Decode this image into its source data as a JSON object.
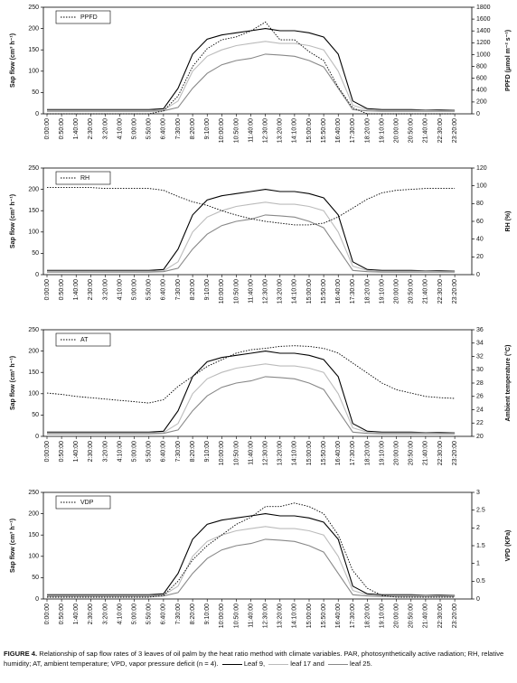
{
  "chart_data": [
    {
      "type": "line",
      "ylabel": "Sap flow (cm³ h⁻¹)",
      "y2label": "PPFD (μmol m⁻² s⁻¹)",
      "categories": [
        "0:00:00",
        "0:50:00",
        "1:40:00",
        "2:30:00",
        "3:20:00",
        "4:10:00",
        "5:00:00",
        "5:50:00",
        "6:40:00",
        "7:30:00",
        "8:20:00",
        "9:10:00",
        "10:00:00",
        "10:50:00",
        "11:40:00",
        "12:30:00",
        "13:20:00",
        "14:10:00",
        "15:00:00",
        "15:50:00",
        "16:40:00",
        "17:30:00",
        "18:20:00",
        "19:10:00",
        "20:00:00",
        "20:50:00",
        "21:40:00",
        "22:30:00",
        "23:20:00"
      ],
      "ylim": [
        0,
        250
      ],
      "yticks": [
        0,
        50,
        100,
        150,
        200,
        250
      ],
      "y2lim": [
        0,
        1800
      ],
      "y2ticks": [
        0,
        200,
        400,
        600,
        800,
        1000,
        1200,
        1400,
        1600,
        1800
      ],
      "series": [
        {
          "name": "Leaf 9",
          "color": "#000000",
          "values": [
            10,
            10,
            10,
            10,
            10,
            10,
            10,
            10,
            12,
            60,
            140,
            175,
            185,
            190,
            195,
            200,
            195,
            195,
            190,
            180,
            140,
            30,
            12,
            10,
            10,
            10,
            9,
            9,
            8
          ]
        },
        {
          "name": "leaf 17",
          "color": "#bbbbbb",
          "values": [
            8,
            8,
            8,
            8,
            8,
            8,
            8,
            8,
            9,
            30,
            100,
            135,
            150,
            160,
            165,
            170,
            165,
            165,
            160,
            150,
            100,
            20,
            10,
            8,
            8,
            8,
            8,
            7,
            7
          ]
        },
        {
          "name": "leaf 25",
          "color": "#888888",
          "values": [
            6,
            6,
            6,
            6,
            6,
            6,
            6,
            6,
            7,
            15,
            60,
            95,
            115,
            125,
            130,
            140,
            138,
            135,
            125,
            110,
            60,
            10,
            7,
            6,
            6,
            6,
            6,
            6,
            6
          ]
        },
        {
          "name": "PPFD",
          "color": "#000000",
          "style": "dotted",
          "axis": "y2",
          "values": [
            0,
            0,
            0,
            0,
            0,
            0,
            0,
            0,
            50,
            300,
            800,
            1100,
            1250,
            1300,
            1400,
            1550,
            1250,
            1250,
            1050,
            900,
            450,
            100,
            0,
            0,
            0,
            0,
            0,
            0,
            0
          ]
        }
      ]
    },
    {
      "type": "line",
      "ylabel": "Sap flow (cm³ h⁻¹)",
      "y2label": "RH (%)",
      "categories": [
        "0:00:00",
        "0:50:00",
        "1:40:00",
        "2:30:00",
        "3:20:00",
        "4:10:00",
        "5:00:00",
        "5:50:00",
        "6:40:00",
        "7:30:00",
        "8:20:00",
        "9:10:00",
        "10:00:00",
        "10:50:00",
        "11:40:00",
        "12:30:00",
        "13:20:00",
        "14:10:00",
        "15:00:00",
        "15:50:00",
        "16:40:00",
        "17:30:00",
        "18:20:00",
        "19:10:00",
        "20:00:00",
        "20:50:00",
        "21:40:00",
        "22:30:00",
        "23:20:00"
      ],
      "ylim": [
        0,
        250
      ],
      "yticks": [
        0,
        50,
        100,
        150,
        200,
        250
      ],
      "y2lim": [
        0,
        120
      ],
      "y2ticks": [
        0,
        20,
        40,
        60,
        80,
        100,
        120
      ],
      "series": [
        {
          "color": "#000000",
          "values": [
            10,
            10,
            10,
            10,
            10,
            10,
            10,
            10,
            12,
            60,
            140,
            175,
            185,
            190,
            195,
            200,
            195,
            195,
            190,
            180,
            140,
            30,
            12,
            10,
            10,
            10,
            9,
            9,
            8
          ]
        },
        {
          "color": "#bbbbbb",
          "values": [
            8,
            8,
            8,
            8,
            8,
            8,
            8,
            8,
            9,
            30,
            100,
            135,
            150,
            160,
            165,
            170,
            165,
            165,
            160,
            150,
            100,
            20,
            10,
            8,
            8,
            8,
            8,
            7,
            7
          ]
        },
        {
          "color": "#888888",
          "values": [
            6,
            6,
            6,
            6,
            6,
            6,
            6,
            6,
            7,
            15,
            60,
            95,
            115,
            125,
            130,
            140,
            138,
            135,
            125,
            110,
            60,
            10,
            7,
            6,
            6,
            6,
            6,
            6,
            6
          ]
        },
        {
          "name": "RH",
          "color": "#000000",
          "style": "dotted",
          "axis": "y2",
          "values": [
            98,
            98,
            98,
            98,
            97,
            97,
            97,
            97,
            95,
            88,
            82,
            78,
            72,
            67,
            63,
            60,
            58,
            56,
            56,
            58,
            65,
            75,
            85,
            92,
            95,
            96,
            97,
            97,
            97
          ]
        }
      ]
    },
    {
      "type": "line",
      "ylabel": "Sap flow (cm³ h⁻¹)",
      "y2label": "Ambient temperature (°C)",
      "categories": [
        "0:00:00",
        "0:50:00",
        "1:40:00",
        "2:30:00",
        "3:20:00",
        "4:10:00",
        "5:00:00",
        "5:50:00",
        "6:40:00",
        "7:30:00",
        "8:20:00",
        "9:10:00",
        "10:00:00",
        "10:50:00",
        "11:40:00",
        "12:30:00",
        "13:20:00",
        "14:10:00",
        "15:00:00",
        "15:50:00",
        "16:40:00",
        "17:30:00",
        "18:20:00",
        "19:10:00",
        "20:00:00",
        "20:50:00",
        "21:40:00",
        "22:30:00",
        "23:20:00"
      ],
      "ylim": [
        0,
        250
      ],
      "yticks": [
        0,
        50,
        100,
        150,
        200,
        250
      ],
      "y2lim": [
        20,
        36
      ],
      "y2ticks": [
        20,
        22,
        24,
        26,
        28,
        30,
        32,
        34,
        36
      ],
      "series": [
        {
          "color": "#000000",
          "values": [
            10,
            10,
            10,
            10,
            10,
            10,
            10,
            10,
            12,
            60,
            140,
            175,
            185,
            190,
            195,
            200,
            195,
            195,
            190,
            180,
            140,
            30,
            12,
            10,
            10,
            10,
            9,
            9,
            8
          ]
        },
        {
          "color": "#bbbbbb",
          "values": [
            8,
            8,
            8,
            8,
            8,
            8,
            8,
            8,
            9,
            30,
            100,
            135,
            150,
            160,
            165,
            170,
            165,
            165,
            160,
            150,
            100,
            20,
            10,
            8,
            8,
            8,
            8,
            7,
            7
          ]
        },
        {
          "color": "#888888",
          "values": [
            6,
            6,
            6,
            6,
            6,
            6,
            6,
            6,
            7,
            15,
            60,
            95,
            115,
            125,
            130,
            140,
            138,
            135,
            125,
            110,
            60,
            10,
            7,
            6,
            6,
            6,
            6,
            6,
            6
          ]
        },
        {
          "name": "AT",
          "color": "#000000",
          "style": "dotted",
          "axis": "y2",
          "values": [
            26.5,
            26.3,
            26,
            25.8,
            25.6,
            25.4,
            25.2,
            25,
            25.5,
            27.5,
            29,
            30.5,
            31.5,
            32.5,
            33,
            33.2,
            33.5,
            33.6,
            33.5,
            33.2,
            32.5,
            31,
            29.5,
            28,
            27,
            26.5,
            26,
            25.8,
            25.7
          ]
        }
      ]
    },
    {
      "type": "line",
      "ylabel": "Sap flow (cm³ h⁻¹)",
      "y2label": "VPD (KPa)",
      "categories": [
        "0:00:00",
        "0:50:00",
        "1:40:00",
        "2:30:00",
        "3:20:00",
        "4:10:00",
        "5:00:00",
        "5:50:00",
        "6:40:00",
        "7:30:00",
        "8:20:00",
        "9:10:00",
        "10:00:00",
        "10:50:00",
        "11:40:00",
        "12:30:00",
        "13:20:00",
        "14:10:00",
        "15:00:00",
        "15:50:00",
        "16:40:00",
        "17:30:00",
        "18:20:00",
        "19:10:00",
        "20:00:00",
        "20:50:00",
        "21:40:00",
        "22:30:00",
        "23:20:00"
      ],
      "ylim": [
        0,
        250
      ],
      "yticks": [
        0,
        50,
        100,
        150,
        200,
        250
      ],
      "y2lim": [
        0,
        3
      ],
      "y2ticks": [
        0,
        0.5,
        1,
        1.5,
        2,
        2.5,
        3
      ],
      "series": [
        {
          "color": "#000000",
          "values": [
            10,
            10,
            10,
            10,
            10,
            10,
            10,
            10,
            12,
            60,
            140,
            175,
            185,
            190,
            195,
            200,
            195,
            195,
            190,
            180,
            140,
            30,
            12,
            10,
            10,
            10,
            9,
            9,
            8
          ]
        },
        {
          "color": "#bbbbbb",
          "values": [
            8,
            8,
            8,
            8,
            8,
            8,
            8,
            8,
            9,
            30,
            100,
            135,
            150,
            160,
            165,
            170,
            165,
            165,
            160,
            150,
            100,
            20,
            10,
            8,
            8,
            8,
            8,
            7,
            7
          ]
        },
        {
          "color": "#888888",
          "values": [
            6,
            6,
            6,
            6,
            6,
            6,
            6,
            6,
            7,
            15,
            60,
            95,
            115,
            125,
            130,
            140,
            138,
            135,
            125,
            110,
            60,
            10,
            7,
            6,
            6,
            6,
            6,
            6,
            6
          ]
        },
        {
          "name": "VDP",
          "color": "#000000",
          "style": "dotted",
          "axis": "y2",
          "values": [
            0.05,
            0.05,
            0.05,
            0.05,
            0.05,
            0.05,
            0.05,
            0.05,
            0.1,
            0.5,
            1.1,
            1.5,
            1.8,
            2.1,
            2.3,
            2.6,
            2.6,
            2.7,
            2.6,
            2.4,
            1.8,
            0.8,
            0.3,
            0.1,
            0.05,
            0.05,
            0.05,
            0.05,
            0.05
          ]
        }
      ]
    }
  ],
  "caption": {
    "label": "FIGURE 4.",
    "text": "Relationship of sap flow rates of 3 leaves of oil palm by the heat ratio method with climate variables. PAR, photosynthetically active radiation; RH, relative humidity; AT, ambient temperature; VPD, vapor pressure deficit (n = 4).",
    "joiners": [
      ",",
      "and",
      "."
    ]
  }
}
